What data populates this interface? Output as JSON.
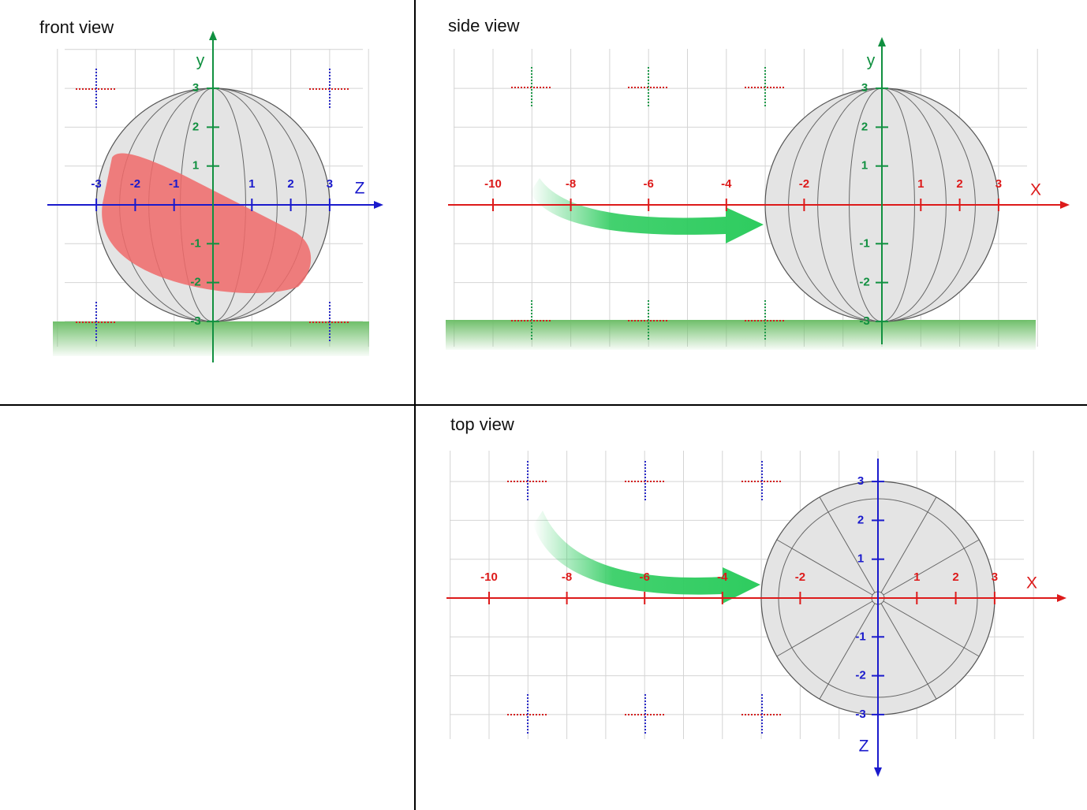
{
  "front_view": {
    "title": "front view",
    "horizontal_axis": {
      "label": "Z",
      "ticks": [
        -3,
        -2,
        -1,
        1,
        2,
        3
      ]
    },
    "vertical_axis": {
      "label": "y",
      "ticks": [
        -3,
        -2,
        -1,
        1,
        2,
        3
      ]
    }
  },
  "side_view": {
    "title": "side view",
    "horizontal_axis": {
      "label": "X",
      "ticks": [
        -10,
        -8,
        -6,
        -4,
        -2,
        1,
        2,
        3
      ]
    },
    "vertical_axis": {
      "label": "y",
      "ticks": [
        -3,
        -2,
        -1,
        1,
        2,
        3
      ]
    }
  },
  "top_view": {
    "title": "top view",
    "horizontal_axis": {
      "label": "X",
      "ticks": [
        -10,
        -8,
        -6,
        -4,
        -2,
        1,
        2,
        3
      ]
    },
    "vertical_axis": {
      "label": "Z",
      "ticks": [
        -3,
        -2,
        -1,
        1,
        2,
        3
      ]
    }
  }
}
